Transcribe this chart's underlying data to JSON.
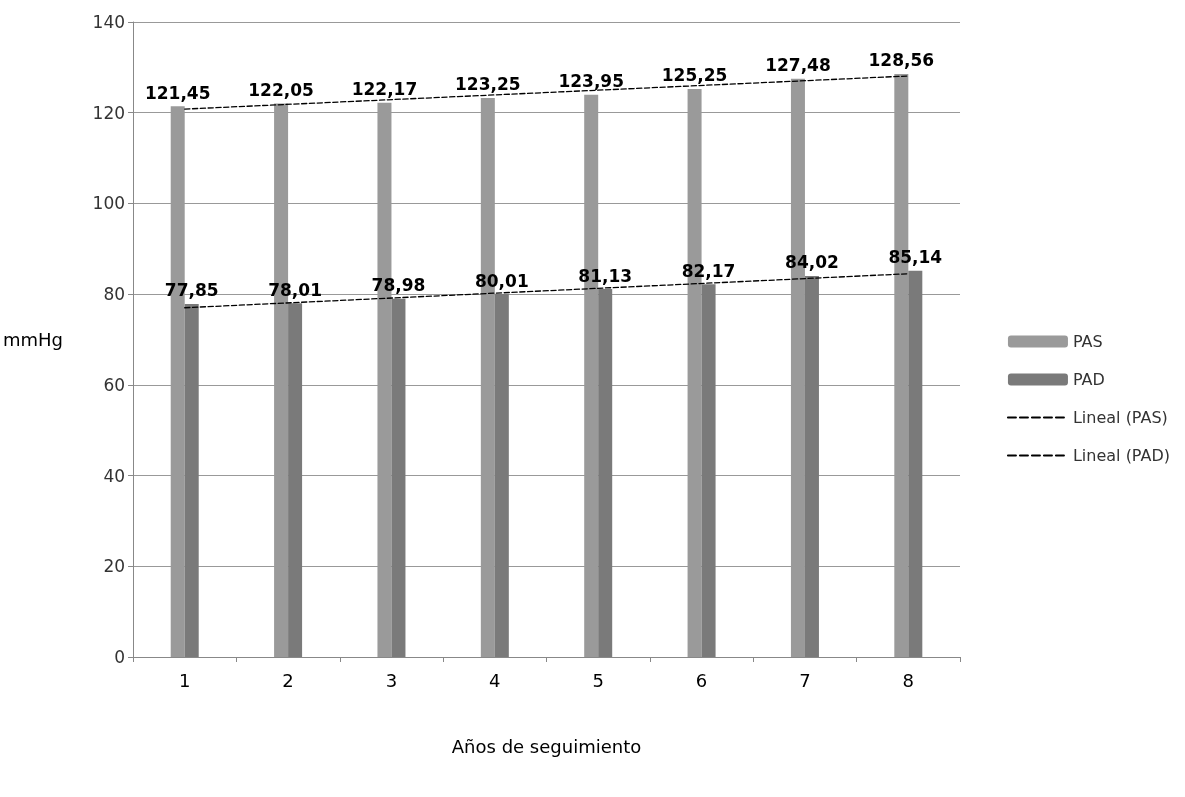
{
  "chart_data": {
    "type": "bar",
    "xlabel": "Años de seguimiento",
    "ylabel": "mmHg",
    "categories": [
      "1",
      "2",
      "3",
      "4",
      "5",
      "6",
      "7",
      "8"
    ],
    "series": [
      {
        "name": "PAS",
        "color": "#9a9a9a",
        "values": [
          121.45,
          122.05,
          122.17,
          123.25,
          123.95,
          125.25,
          127.48,
          128.56
        ],
        "value_labels": [
          "121,45",
          "122,05",
          "122,17",
          "123,25",
          "123,95",
          "125,25",
          "127,48",
          "128,56"
        ]
      },
      {
        "name": "PAD",
        "color": "#7a7a7a",
        "values": [
          77.85,
          78.01,
          78.98,
          80.01,
          81.13,
          82.17,
          84.02,
          85.14
        ],
        "value_labels": [
          "77,85",
          "78,01",
          "78,98",
          "80,01",
          "81,13",
          "82,17",
          "84,02",
          "85,14"
        ]
      },
      {
        "name": "Lineal (PAS)",
        "type": "line",
        "color": "#000000",
        "line_style": "dashed",
        "marker": "none",
        "x": [
          "1",
          "8"
        ],
        "values": [
          120.8,
          128.1
        ]
      },
      {
        "name": "Lineal (PAD)",
        "type": "line",
        "color": "#000000",
        "line_style": "dashed",
        "marker": "none",
        "x": [
          "1",
          "8"
        ],
        "values": [
          77.0,
          84.5
        ]
      }
    ],
    "ylim": [
      0,
      140
    ],
    "yticks": [
      0,
      20,
      40,
      60,
      80,
      100,
      120,
      140
    ],
    "grid": "y",
    "legend": "right"
  }
}
